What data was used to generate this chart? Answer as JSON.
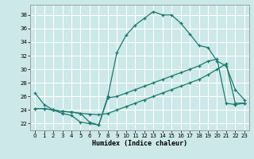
{
  "xlabel": "Humidex (Indice chaleur)",
  "bg_color": "#cce8e8",
  "grid_color": "#ffffff",
  "line_color": "#1a7a6e",
  "xlim": [
    -0.5,
    23.5
  ],
  "ylim": [
    21.0,
    39.5
  ],
  "xticks": [
    0,
    1,
    2,
    3,
    4,
    5,
    6,
    7,
    8,
    9,
    10,
    11,
    12,
    13,
    14,
    15,
    16,
    17,
    18,
    19,
    20,
    21,
    22,
    23
  ],
  "yticks": [
    22,
    24,
    26,
    28,
    30,
    32,
    34,
    36,
    38
  ],
  "line1_x": [
    0,
    1,
    2,
    3,
    4,
    5,
    6,
    7,
    8,
    9,
    10,
    11,
    12,
    13,
    14,
    15,
    16,
    17,
    18,
    19,
    20,
    21,
    22,
    23
  ],
  "line1_y": [
    26.5,
    24.8,
    24.0,
    23.5,
    23.2,
    22.2,
    22.0,
    21.8,
    26.0,
    32.5,
    35.0,
    36.5,
    37.5,
    38.5,
    38.0,
    38.0,
    36.8,
    35.2,
    33.5,
    33.2,
    31.2,
    30.5,
    27.0,
    25.5
  ],
  "line2_x": [
    0,
    1,
    2,
    3,
    4,
    5,
    6,
    7,
    8,
    9,
    10,
    11,
    12,
    13,
    14,
    15,
    16,
    17,
    18,
    19,
    20,
    21,
    22,
    23
  ],
  "line2_y": [
    24.2,
    24.2,
    24.0,
    23.8,
    23.7,
    23.5,
    23.4,
    23.3,
    23.5,
    24.0,
    24.5,
    25.0,
    25.5,
    26.0,
    26.5,
    27.0,
    27.5,
    28.0,
    28.5,
    29.2,
    30.0,
    30.8,
    25.0,
    25.0
  ],
  "line3_x": [
    0,
    1,
    2,
    3,
    4,
    5,
    6,
    7,
    8,
    9,
    10,
    11,
    12,
    13,
    14,
    15,
    16,
    17,
    18,
    19,
    20,
    21,
    22,
    23
  ],
  "line3_y": [
    24.2,
    24.2,
    24.0,
    23.8,
    23.7,
    23.5,
    22.2,
    21.8,
    25.8,
    26.0,
    26.5,
    27.0,
    27.5,
    28.0,
    28.5,
    29.0,
    29.5,
    30.0,
    30.5,
    31.2,
    31.5,
    25.0,
    24.8,
    25.0
  ]
}
